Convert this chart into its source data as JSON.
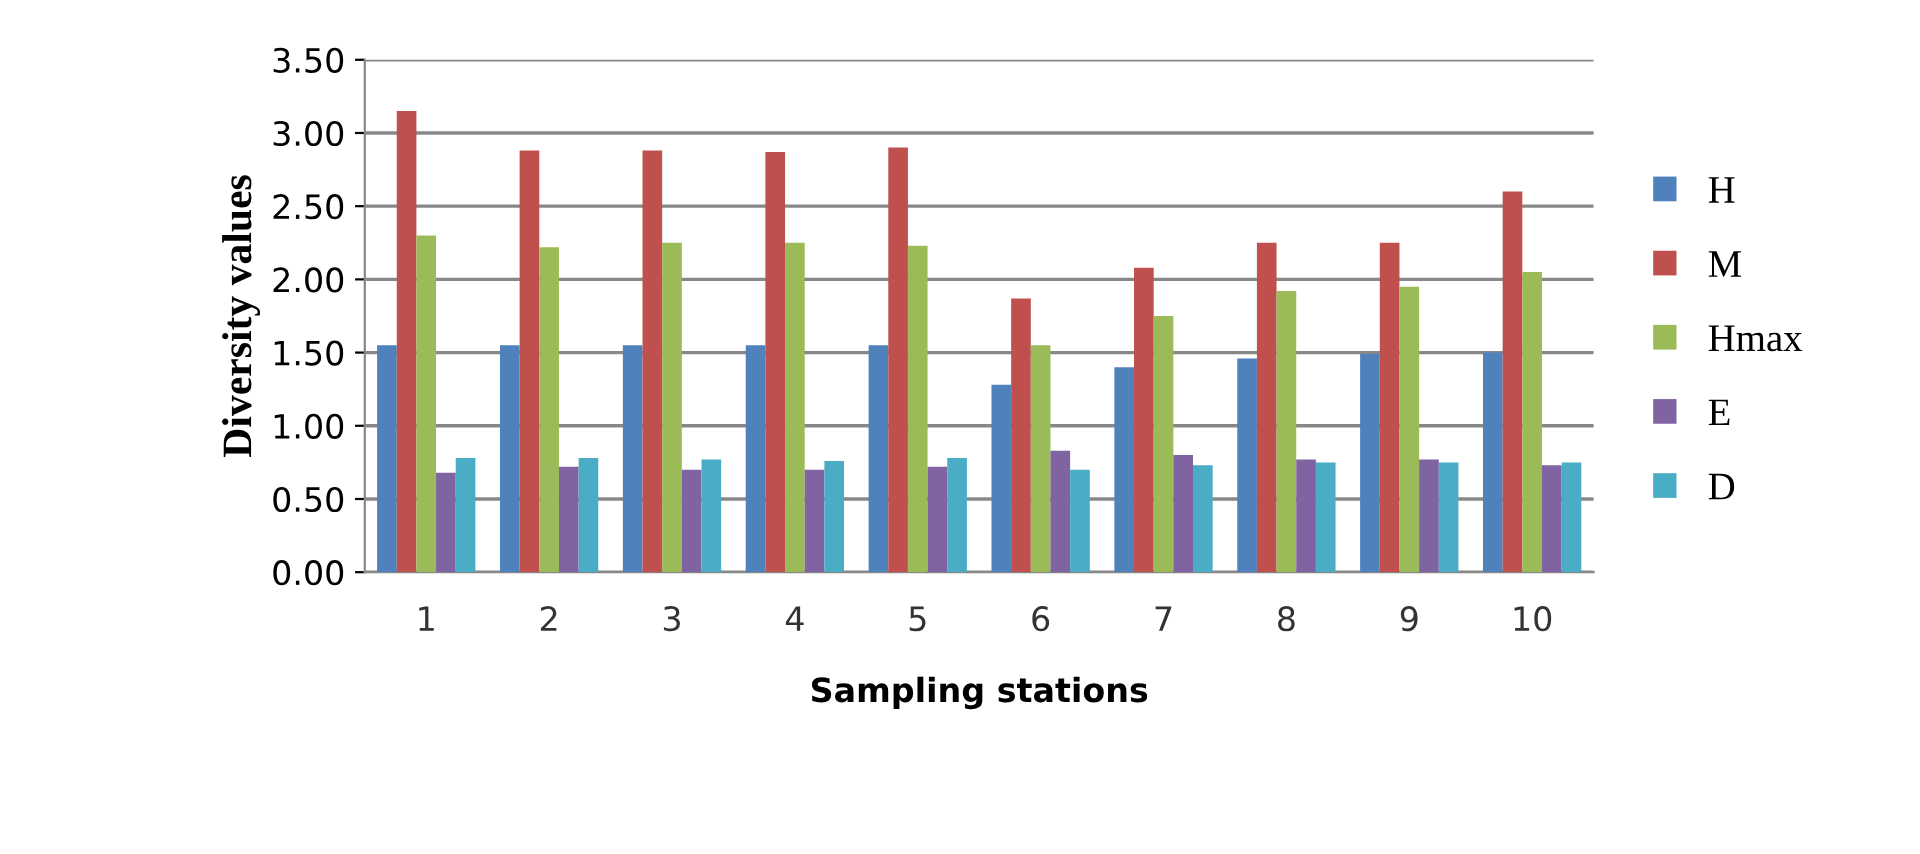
{
  "chart_data": {
    "type": "bar",
    "xlabel": "Sampling stations",
    "ylabel": "Diversity values",
    "categories": [
      "1",
      "2",
      "3",
      "4",
      "5",
      "6",
      "7",
      "8",
      "9",
      "10"
    ],
    "series": [
      {
        "name": "H",
        "color": "#4f81bd",
        "values": [
          1.55,
          1.55,
          1.55,
          1.55,
          1.55,
          1.28,
          1.4,
          1.46,
          1.49,
          1.5
        ]
      },
      {
        "name": "M",
        "color": "#c0504d",
        "values": [
          3.15,
          2.88,
          2.88,
          2.87,
          2.9,
          1.87,
          2.08,
          2.25,
          2.25,
          2.6
        ]
      },
      {
        "name": "Hmax",
        "color": "#9bbb59",
        "values": [
          2.3,
          2.22,
          2.25,
          2.25,
          2.23,
          1.55,
          1.75,
          1.92,
          1.95,
          2.05
        ]
      },
      {
        "name": "E",
        "color": "#8064a2",
        "values": [
          0.68,
          0.72,
          0.7,
          0.7,
          0.72,
          0.83,
          0.8,
          0.77,
          0.77,
          0.73
        ]
      },
      {
        "name": "D",
        "color": "#4bacc6",
        "values": [
          0.78,
          0.78,
          0.77,
          0.76,
          0.78,
          0.7,
          0.73,
          0.75,
          0.75,
          0.75
        ]
      }
    ],
    "ylim": [
      0,
      3.5
    ],
    "yticks": [
      {
        "value": 0,
        "label": "0.00"
      },
      {
        "value": 0.5,
        "label": "0.50"
      },
      {
        "value": 1,
        "label": "1.00"
      },
      {
        "value": 1.5,
        "label": "1.50"
      },
      {
        "value": 2,
        "label": "2.00"
      },
      {
        "value": 2.5,
        "label": "2.50"
      },
      {
        "value": 3,
        "label": "3.00"
      },
      {
        "value": 3.5,
        "label": "3.50"
      }
    ],
    "grid": "y",
    "legend": "right"
  }
}
